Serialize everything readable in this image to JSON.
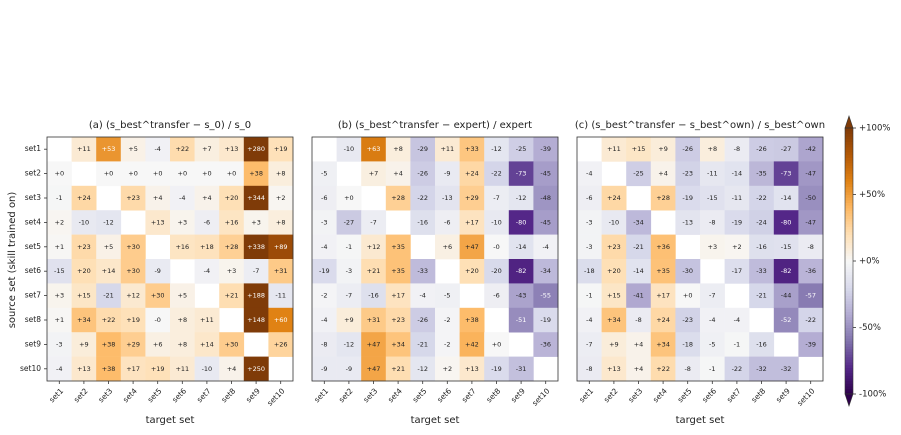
{
  "chart_data": [
    {
      "type": "heatmap",
      "title": "(a) (s_best^transfer − s_0) / s_0",
      "xlabel": "target set",
      "ylabel": "source set (skill trained on)",
      "x": [
        "set1",
        "set2",
        "set3",
        "set4",
        "set5",
        "set6",
        "set7",
        "set8",
        "set9",
        "set10"
      ],
      "y": [
        "set1",
        "set2",
        "set3",
        "set4",
        "set5",
        "set6",
        "set7",
        "set8",
        "set9",
        "set10"
      ],
      "values": [
        [
          null,
          11,
          53,
          5,
          -4,
          22,
          7,
          13,
          280,
          19
        ],
        [
          0,
          null,
          0,
          0,
          0,
          0,
          0,
          0,
          38,
          8
        ],
        [
          -1,
          24,
          null,
          23,
          4,
          -4,
          4,
          20,
          344,
          2
        ],
        [
          2,
          -10,
          -12,
          null,
          13,
          3,
          -6,
          16,
          3,
          8
        ],
        [
          1,
          23,
          5,
          30,
          null,
          16,
          18,
          28,
          338,
          89
        ],
        [
          -15,
          20,
          14,
          30,
          -9,
          null,
          -4,
          3,
          -7,
          31
        ],
        [
          3,
          15,
          -21,
          12,
          30,
          5,
          null,
          21,
          188,
          -11
        ],
        [
          1,
          34,
          22,
          19,
          0,
          8,
          11,
          null,
          148,
          60
        ],
        [
          -3,
          9,
          38,
          29,
          6,
          8,
          14,
          30,
          null,
          26
        ],
        [
          -4,
          13,
          38,
          17,
          19,
          11,
          -10,
          4,
          250,
          null
        ]
      ],
      "value_labels": [
        [
          null,
          "+11",
          "+53",
          "+5",
          "-4",
          "+22",
          "+7",
          "+13",
          "+280",
          "+19"
        ],
        [
          "+0",
          null,
          "+0",
          "+0",
          "+0",
          "+0",
          "+0",
          "+0",
          "+38",
          "+8"
        ],
        [
          "-1",
          "+24",
          null,
          "+23",
          "+4",
          "-4",
          "+4",
          "+20",
          "+344",
          "+2"
        ],
        [
          "+2",
          "-10",
          "-12",
          null,
          "+13",
          "+3",
          "-6",
          "+16",
          "+3",
          "+8"
        ],
        [
          "+1",
          "+23",
          "+5",
          "+30",
          null,
          "+16",
          "+18",
          "+28",
          "+338",
          "+89"
        ],
        [
          "-15",
          "+20",
          "+14",
          "+30",
          "-9",
          null,
          "-4",
          "+3",
          "-7",
          "+31"
        ],
        [
          "+3",
          "+15",
          "-21",
          "+12",
          "+30",
          "+5",
          null,
          "+21",
          "+188",
          "-11"
        ],
        [
          "+1",
          "+34",
          "+22",
          "+19",
          "-0",
          "+8",
          "+11",
          null,
          "+148",
          "+60"
        ],
        [
          "-3",
          "+9",
          "+38",
          "+29",
          "+6",
          "+8",
          "+14",
          "+30",
          null,
          "+26"
        ],
        [
          "-4",
          "+13",
          "+38",
          "+17",
          "+19",
          "+11",
          "-10",
          "+4",
          "+250",
          null
        ]
      ]
    },
    {
      "type": "heatmap",
      "title": "(b) (s_best^transfer − expert) / expert",
      "xlabel": "target set",
      "x": [
        "set1",
        "set2",
        "set3",
        "set4",
        "set5",
        "set6",
        "set7",
        "set8",
        "set9",
        "set10"
      ],
      "values": [
        [
          null,
          -10,
          63,
          8,
          -29,
          11,
          33,
          -12,
          -25,
          -39
        ],
        [
          -5,
          null,
          7,
          4,
          -26,
          -9,
          24,
          -22,
          -73,
          -45
        ],
        [
          -6,
          0,
          null,
          28,
          -22,
          -13,
          29,
          -7,
          -12,
          -48
        ],
        [
          -3,
          -27,
          -7,
          null,
          -16,
          -6,
          17,
          -10,
          -80,
          -45
        ],
        [
          -4,
          -1,
          12,
          35,
          null,
          6,
          47,
          0,
          -14,
          -4
        ],
        [
          -19,
          -3,
          21,
          35,
          -33,
          null,
          20,
          -20,
          -82,
          -34
        ],
        [
          -2,
          -7,
          -16,
          17,
          -4,
          -5,
          null,
          -6,
          -43,
          -55
        ],
        [
          -4,
          9,
          31,
          23,
          -26,
          -2,
          38,
          null,
          -51,
          -19
        ],
        [
          -8,
          -12,
          47,
          34,
          -21,
          -2,
          42,
          0,
          null,
          -36
        ],
        [
          -9,
          -9,
          47,
          21,
          -12,
          2,
          13,
          -19,
          -31,
          null
        ]
      ],
      "value_labels": [
        [
          null,
          "-10",
          "+63",
          "+8",
          "-29",
          "+11",
          "+33",
          "-12",
          "-25",
          "-39"
        ],
        [
          "-5",
          null,
          "+7",
          "+4",
          "-26",
          "-9",
          "+24",
          "-22",
          "-73",
          "-45"
        ],
        [
          "-6",
          "+0",
          null,
          "+28",
          "-22",
          "-13",
          "+29",
          "-7",
          "-12",
          "-48"
        ],
        [
          "-3",
          "-27",
          "-7",
          null,
          "-16",
          "-6",
          "+17",
          "-10",
          "-80",
          "-45"
        ],
        [
          "-4",
          "-1",
          "+12",
          "+35",
          null,
          "+6",
          "+47",
          "-0",
          "-14",
          "-4"
        ],
        [
          "-19",
          "-3",
          "+21",
          "+35",
          "-33",
          null,
          "+20",
          "-20",
          "-82",
          "-34"
        ],
        [
          "-2",
          "-7",
          "-16",
          "+17",
          "-4",
          "-5",
          null,
          "-6",
          "-43",
          "-55"
        ],
        [
          "-4",
          "+9",
          "+31",
          "+23",
          "-26",
          "-2",
          "+38",
          null,
          "-51",
          "-19"
        ],
        [
          "-8",
          "-12",
          "+47",
          "+34",
          "-21",
          "-2",
          "+42",
          "+0",
          null,
          "-36"
        ],
        [
          "-9",
          "-9",
          "+47",
          "+21",
          "-12",
          "+2",
          "+13",
          "-19",
          "-31",
          null
        ]
      ]
    },
    {
      "type": "heatmap",
      "title": "(c) (s_best^transfer − s_best^own) / s_best^own",
      "xlabel": "target set",
      "x": [
        "set1",
        "set2",
        "set3",
        "set4",
        "set5",
        "set6",
        "set7",
        "set8",
        "set9",
        "set10"
      ],
      "values": [
        [
          null,
          11,
          15,
          9,
          -26,
          8,
          -8,
          -26,
          -27,
          -42
        ],
        [
          -4,
          null,
          -25,
          4,
          -23,
          -11,
          -14,
          -35,
          -73,
          -47
        ],
        [
          -6,
          24,
          null,
          28,
          -19,
          -15,
          -11,
          -22,
          -14,
          -50
        ],
        [
          -3,
          -10,
          -34,
          null,
          -13,
          -8,
          -19,
          -24,
          -80,
          -47
        ],
        [
          -3,
          23,
          -21,
          36,
          null,
          3,
          2,
          -16,
          -15,
          -8
        ],
        [
          -18,
          20,
          -14,
          35,
          -30,
          null,
          -17,
          -33,
          -82,
          -36
        ],
        [
          -1,
          15,
          -41,
          17,
          0,
          -7,
          null,
          -21,
          -44,
          -57
        ],
        [
          -4,
          34,
          -8,
          24,
          -23,
          -4,
          -4,
          null,
          -52,
          -22
        ],
        [
          -7,
          9,
          4,
          34,
          -18,
          -5,
          -1,
          -16,
          null,
          -39
        ],
        [
          -8,
          13,
          4,
          22,
          -8,
          -1,
          -22,
          -32,
          -32,
          null
        ]
      ],
      "value_labels": [
        [
          null,
          "+11",
          "+15",
          "+9",
          "-26",
          "+8",
          "-8",
          "-26",
          "-27",
          "-42"
        ],
        [
          "-4",
          null,
          "-25",
          "+4",
          "-23",
          "-11",
          "-14",
          "-35",
          "-73",
          "-47"
        ],
        [
          "-6",
          "+24",
          null,
          "+28",
          "-19",
          "-15",
          "-11",
          "-22",
          "-14",
          "-50"
        ],
        [
          "-3",
          "-10",
          "-34",
          null,
          "-13",
          "-8",
          "-19",
          "-24",
          "-80",
          "-47"
        ],
        [
          "-3",
          "+23",
          "-21",
          "+36",
          null,
          "+3",
          "+2",
          "-16",
          "-15",
          "-8"
        ],
        [
          "-18",
          "+20",
          "-14",
          "+35",
          "-30",
          null,
          "-17",
          "-33",
          "-82",
          "-36"
        ],
        [
          "-1",
          "+15",
          "-41",
          "+17",
          "+0",
          "-7",
          null,
          "-21",
          "-44",
          "-57"
        ],
        [
          "-4",
          "+34",
          "-8",
          "+24",
          "-23",
          "-4",
          "-4",
          null,
          "-52",
          "-22"
        ],
        [
          "-7",
          "+9",
          "+4",
          "+34",
          "-18",
          "-5",
          "-1",
          "-16",
          null,
          "-39"
        ],
        [
          "-8",
          "+13",
          "+4",
          "+22",
          "-8",
          "-1",
          "-22",
          "-32",
          "-32",
          null
        ]
      ]
    }
  ],
  "colorbar": {
    "ylim": [
      -100,
      100
    ],
    "yticks": [
      {
        "value": 100,
        "label": "+100%"
      },
      {
        "value": 50,
        "label": "+50%"
      },
      {
        "value": 0,
        "label": "+0%"
      },
      {
        "value": -50,
        "label": "-50%"
      },
      {
        "value": -100,
        "label": "-100%"
      }
    ]
  }
}
